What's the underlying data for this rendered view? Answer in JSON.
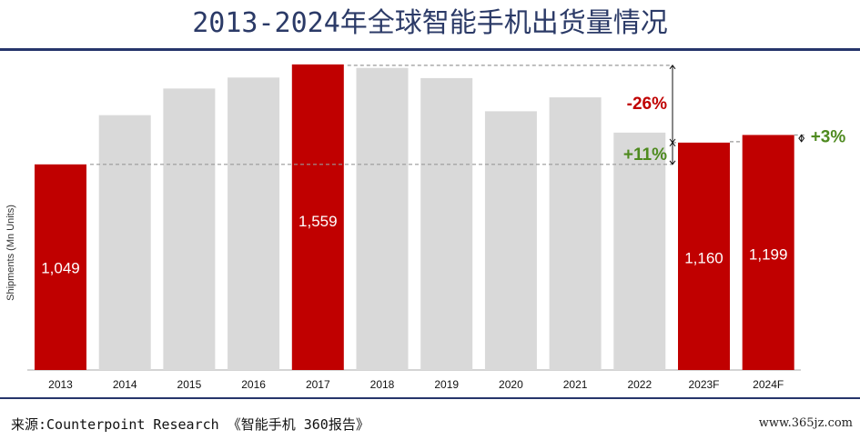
{
  "title": "2013-2024年全球智能手机出货量情况",
  "source": "来源:Counterpoint Research 《智能手机 360报告》",
  "watermark": "www.365jz.com",
  "colors": {
    "highlight": "#c00000",
    "normal": "#d9d9d9",
    "title": "#2b3a67",
    "rule": "#26356b",
    "negative": "#c00000",
    "positive": "#4e8a1f"
  },
  "chart_data": {
    "type": "bar",
    "ylabel": "Shipments (Mn Units)",
    "categories": [
      "2013",
      "2014",
      "2015",
      "2016",
      "2017",
      "2018",
      "2019",
      "2020",
      "2021",
      "2022",
      "2023F",
      "2024F"
    ],
    "values": [
      1049,
      1300,
      1436,
      1492,
      1559,
      1541,
      1489,
      1320,
      1391,
      1211,
      1160,
      1199
    ],
    "highlighted": [
      "2013",
      "2017",
      "2023F",
      "2024F"
    ],
    "data_labels": {
      "2013": "1,049",
      "2017": "1,559",
      "2023F": "1,160",
      "2024F": "1,199"
    },
    "ylim": [
      0,
      1600
    ],
    "grid": false,
    "annotations": [
      {
        "text": "-26%",
        "from": "2017",
        "to": "2023F",
        "type": "negative"
      },
      {
        "text": "+11%",
        "from": "2013",
        "to": "2023F",
        "type": "positive"
      },
      {
        "text": "+3%",
        "from": "2023F",
        "to": "2024F",
        "type": "positive"
      }
    ]
  }
}
